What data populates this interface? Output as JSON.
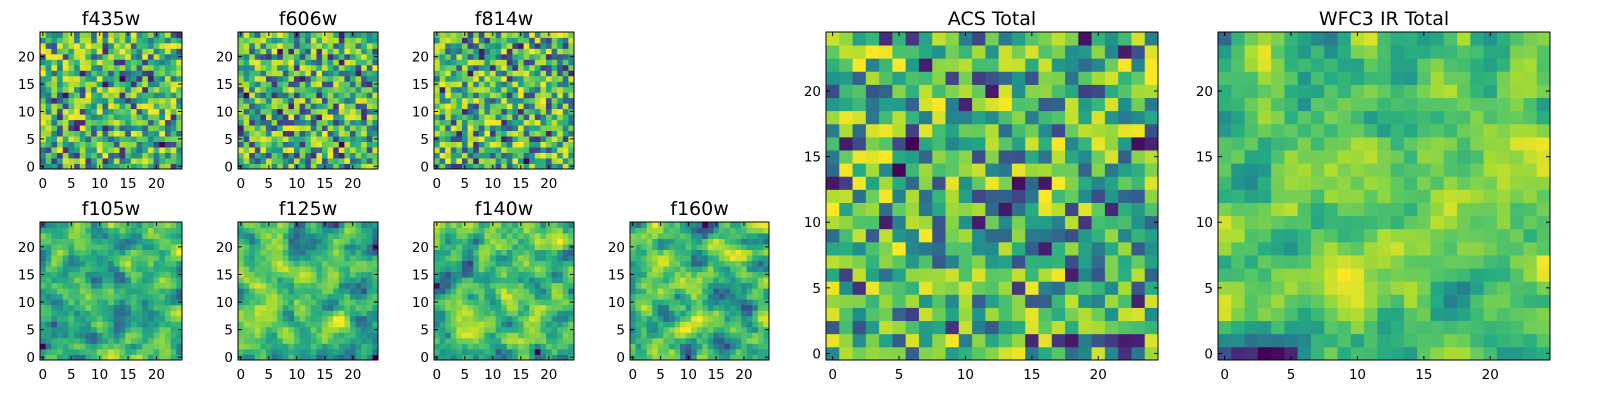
{
  "chart_data": [
    {
      "type": "heatmap",
      "title": "f435w",
      "xticks": [
        "0",
        "5",
        "10",
        "15",
        "20"
      ],
      "yticks": [
        "0",
        "5",
        "10",
        "15",
        "20"
      ],
      "xlim": [
        -0.5,
        24.5
      ],
      "ylim": [
        -0.5,
        24.5
      ],
      "grid": "off",
      "colormap": "viridis",
      "seed": 11,
      "smooth": 0
    },
    {
      "type": "heatmap",
      "title": "f606w",
      "xticks": [
        "0",
        "5",
        "10",
        "15",
        "20"
      ],
      "yticks": [
        "0",
        "5",
        "10",
        "15",
        "20"
      ],
      "xlim": [
        -0.5,
        24.5
      ],
      "ylim": [
        -0.5,
        24.5
      ],
      "grid": "off",
      "colormap": "viridis",
      "seed": 23,
      "smooth": 0
    },
    {
      "type": "heatmap",
      "title": "f814w",
      "xticks": [
        "0",
        "5",
        "10",
        "15",
        "20"
      ],
      "yticks": [
        "0",
        "5",
        "10",
        "15",
        "20"
      ],
      "xlim": [
        -0.5,
        24.5
      ],
      "ylim": [
        -0.5,
        24.5
      ],
      "grid": "off",
      "colormap": "viridis",
      "seed": 37,
      "smooth": 0
    },
    {
      "type": "heatmap",
      "title": "f105w",
      "xticks": [
        "0",
        "5",
        "10",
        "15",
        "20"
      ],
      "yticks": [
        "0",
        "5",
        "10",
        "15",
        "20"
      ],
      "xlim": [
        -0.5,
        24.5
      ],
      "ylim": [
        -0.5,
        24.5
      ],
      "grid": "off",
      "colormap": "viridis",
      "seed": 41,
      "smooth": 1
    },
    {
      "type": "heatmap",
      "title": "f125w",
      "xticks": [
        "0",
        "5",
        "10",
        "15",
        "20"
      ],
      "yticks": [
        "0",
        "5",
        "10",
        "15",
        "20"
      ],
      "xlim": [
        -0.5,
        24.5
      ],
      "ylim": [
        -0.5,
        24.5
      ],
      "grid": "off",
      "colormap": "viridis",
      "seed": 53,
      "smooth": 1
    },
    {
      "type": "heatmap",
      "title": "f140w",
      "xticks": [
        "0",
        "5",
        "10",
        "15",
        "20"
      ],
      "yticks": [
        "0",
        "5",
        "10",
        "15",
        "20"
      ],
      "xlim": [
        -0.5,
        24.5
      ],
      "ylim": [
        -0.5,
        24.5
      ],
      "grid": "off",
      "colormap": "viridis",
      "seed": 67,
      "smooth": 1
    },
    {
      "type": "heatmap",
      "title": "f160w",
      "xticks": [
        "0",
        "5",
        "10",
        "15",
        "20"
      ],
      "yticks": [
        "0",
        "5",
        "10",
        "15",
        "20"
      ],
      "xlim": [
        -0.5,
        24.5
      ],
      "ylim": [
        -0.5,
        24.5
      ],
      "grid": "off",
      "colormap": "viridis",
      "seed": 71,
      "smooth": 1
    },
    {
      "type": "heatmap",
      "title": "ACS Total",
      "xticks": [
        "0",
        "5",
        "10",
        "15",
        "20"
      ],
      "yticks": [
        "0",
        "5",
        "10",
        "15",
        "20"
      ],
      "xlim": [
        -0.5,
        24.5
      ],
      "ylim": [
        -0.5,
        24.5
      ],
      "grid": "off",
      "colormap": "viridis",
      "seed": 83,
      "smooth": 0
    },
    {
      "type": "heatmap",
      "title": "WFC3 IR Total",
      "xticks": [
        "0",
        "5",
        "10",
        "15",
        "20"
      ],
      "yticks": [
        "0",
        "5",
        "10",
        "15",
        "20"
      ],
      "xlim": [
        -0.5,
        24.5
      ],
      "ylim": [
        -0.5,
        24.5
      ],
      "grid": "off",
      "colormap": "viridis",
      "seed": 97,
      "smooth": 1
    }
  ],
  "colors": {
    "low": "#440154",
    "mid": "#21918c",
    "high": "#fde725",
    "axis": "#000000"
  }
}
